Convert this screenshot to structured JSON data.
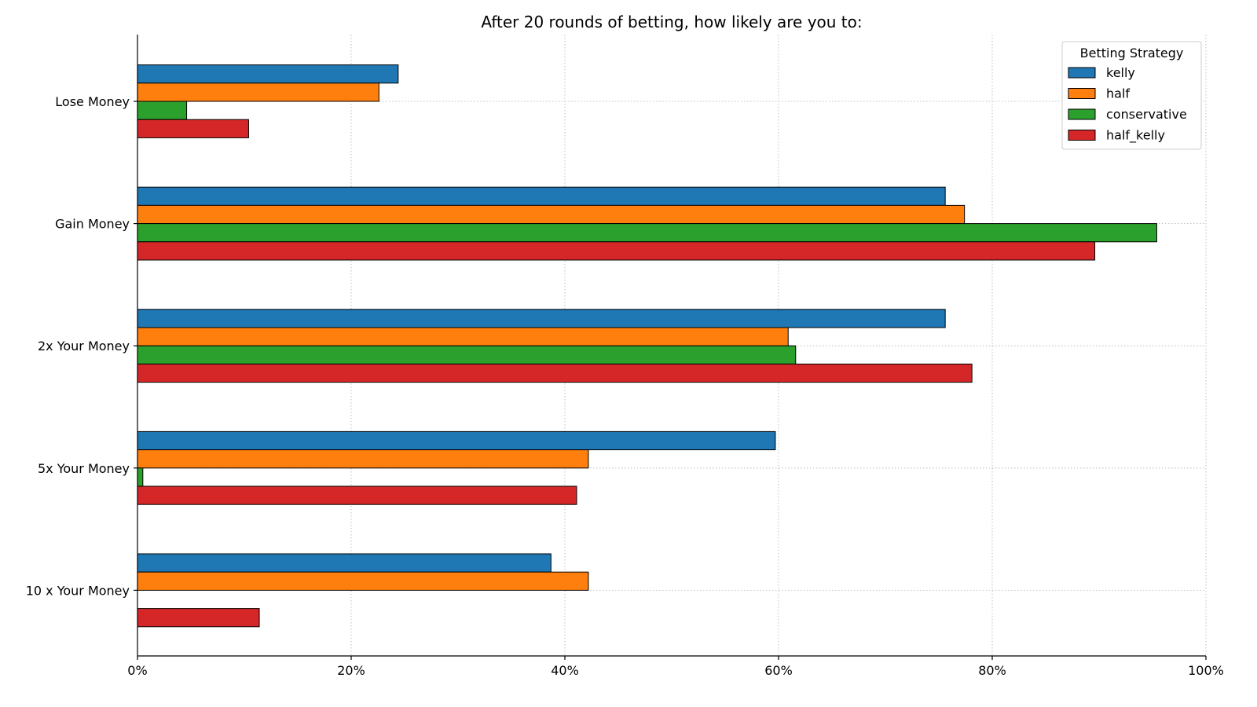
{
  "chart_data": {
    "type": "bar",
    "orientation": "horizontal",
    "title": "After 20 rounds of betting, how likely are you to:",
    "xlabel": "",
    "ylabel": "",
    "categories": [
      "Lose Money",
      "Gain Money",
      "2x Your Money",
      "5x Your Money",
      "10 x Your Money"
    ],
    "series": [
      {
        "name": "kelly",
        "color": "#1f77b4",
        "values": [
          24.4,
          75.6,
          75.6,
          59.7,
          38.7
        ]
      },
      {
        "name": "half",
        "color": "#ff7f0e",
        "values": [
          22.6,
          77.4,
          60.9,
          42.2,
          42.2
        ]
      },
      {
        "name": "conservative",
        "color": "#2ca02c",
        "values": [
          4.6,
          95.4,
          61.6,
          0.5,
          0.0
        ]
      },
      {
        "name": "half_kelly",
        "color": "#d62728",
        "values": [
          10.4,
          89.6,
          78.1,
          41.1,
          11.4
        ]
      }
    ],
    "xlim": [
      0,
      100
    ],
    "xticks": [
      0,
      20,
      40,
      60,
      80,
      100
    ],
    "xtick_labels": [
      "0%",
      "20%",
      "40%",
      "60%",
      "80%",
      "100%"
    ],
    "grid": true,
    "legend": {
      "title": "Betting Strategy",
      "placement": "top-right"
    }
  }
}
